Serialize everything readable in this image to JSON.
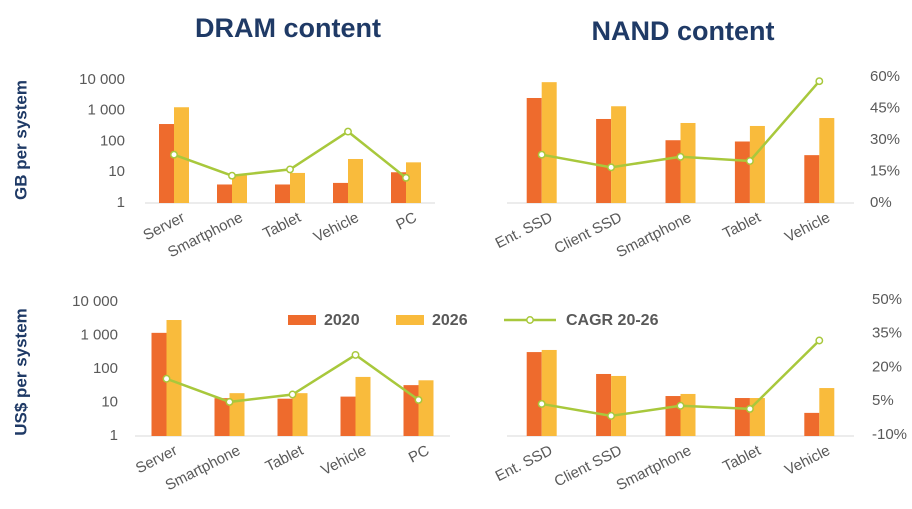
{
  "chart_data": [
    {
      "type": "bar",
      "title": "DRAM content",
      "y_label": "GB per system",
      "log": true,
      "categories": [
        "Server",
        "Smartphone",
        "Tablet",
        "Vehicle",
        "PC"
      ],
      "series": [
        {
          "color": "#ee6b2d",
          "values": [
            370,
            4,
            4,
            4.5,
            10
          ]
        },
        {
          "color": "#f9bb3c",
          "values": [
            1300,
            8,
            9.5,
            27,
            21
          ]
        },
        {
          "type": "line",
          "axis": "y2",
          "color": "#a8c83c",
          "values": [
            23,
            13,
            16,
            34,
            12
          ]
        }
      ],
      "ylim": [
        1,
        10000
      ],
      "yticks": [
        {
          "value": 10000,
          "label": "10 000"
        },
        {
          "value": 1000,
          "label": "1 000"
        },
        100,
        10,
        1
      ],
      "y2lim": [
        0,
        60
      ]
    },
    {
      "type": "bar",
      "title": "NAND content",
      "log": true,
      "categories": [
        "Ent. SSD",
        "Client SSD",
        "Smartphone",
        "Tablet",
        "Vehicle"
      ],
      "series": [
        {
          "color": "#ee6b2d",
          "values": [
            2600,
            540,
            110,
            100,
            36
          ]
        },
        {
          "color": "#f9bb3c",
          "values": [
            8500,
            1400,
            400,
            320,
            580
          ]
        },
        {
          "type": "line",
          "axis": "y2",
          "color": "#a8c83c",
          "values": [
            23,
            17,
            22,
            20,
            58
          ]
        }
      ],
      "ylim": [
        1,
        10000
      ],
      "y2lim": [
        0,
        60
      ],
      "y2ticks": [
        {
          "value": 60,
          "label": "60%"
        },
        {
          "value": 45,
          "label": "45%"
        },
        {
          "value": 30,
          "label": "30%"
        },
        {
          "value": 15,
          "label": "15%"
        },
        {
          "value": 0,
          "label": "0%"
        }
      ]
    },
    {
      "type": "bar",
      "y_label": "US$ per system",
      "log": true,
      "categories": [
        "Server",
        "Smartphone",
        "Tablet",
        "Vehicle",
        "PC"
      ],
      "series": [
        {
          "name": "2020",
          "color": "#ee6b2d",
          "values": [
            1200,
            13.5,
            13,
            15,
            33
          ]
        },
        {
          "name": "2026",
          "color": "#f9bb3c",
          "values": [
            2900,
            19,
            19,
            58,
            46
          ]
        },
        {
          "name": "CAGR 20-26",
          "type": "line",
          "axis": "y2",
          "color": "#a8c83c",
          "values": [
            15,
            4.7,
            8,
            25.6,
            5.6
          ]
        }
      ],
      "ylim": [
        1,
        10000
      ],
      "yticks": [
        {
          "value": 10000,
          "label": "10 000"
        },
        {
          "value": 1000,
          "label": "1 000"
        },
        100,
        10,
        1
      ],
      "y2lim": [
        -10,
        50
      ]
    },
    {
      "type": "bar",
      "log": true,
      "categories": [
        "Ent. SSD",
        "Client SSD",
        "Smartphone",
        "Tablet",
        "Vehicle"
      ],
      "series": [
        {
          "color": "#ee6b2d",
          "values": [
            320,
            71,
            15.6,
            13.6,
            4.9
          ]
        },
        {
          "color": "#f9bb3c",
          "values": [
            370,
            62,
            18,
            13.6,
            27
          ]
        },
        {
          "type": "line",
          "axis": "y2",
          "color": "#a8c83c",
          "values": [
            3.8,
            -1.5,
            3,
            1.6,
            32
          ]
        }
      ],
      "ylim": [
        1,
        10000
      ],
      "y2lim": [
        -10,
        50
      ],
      "y2ticks": [
        {
          "value": 50,
          "label": "50%"
        },
        {
          "value": 35,
          "label": "35%"
        },
        {
          "value": 20,
          "label": "20%"
        },
        {
          "value": 5,
          "label": "5%"
        },
        {
          "value": -10,
          "label": "-10%"
        }
      ]
    }
  ]
}
